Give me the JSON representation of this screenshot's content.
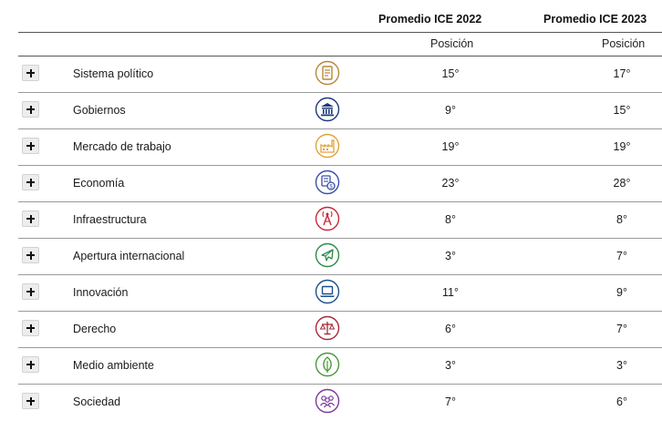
{
  "header": {
    "col_2022": "Promedio ICE 2022",
    "col_2023": "Promedio ICE 2023",
    "sub_2022": "Posición",
    "sub_2023": "Posición"
  },
  "rows": [
    {
      "label": "Sistema político",
      "icon": "document-icon",
      "color": "#b8873a",
      "v2022": "15°",
      "v2023": "17°"
    },
    {
      "label": "Gobiernos",
      "icon": "government-building-icon",
      "color": "#1f3a7a",
      "v2022": "9°",
      "v2023": "15°"
    },
    {
      "label": "Mercado de trabajo",
      "icon": "factory-icon",
      "color": "#e0a33a",
      "v2022": "19°",
      "v2023": "19°"
    },
    {
      "label": "Economía",
      "icon": "money-icon",
      "color": "#3a4fa8",
      "v2022": "23°",
      "v2023": "28°"
    },
    {
      "label": "Infraestructura",
      "icon": "antenna-tower-icon",
      "color": "#c8283a",
      "v2022": "8°",
      "v2023": "8°"
    },
    {
      "label": "Apertura internacional",
      "icon": "airplane-icon",
      "color": "#2e8a4a",
      "v2022": "3°",
      "v2023": "7°"
    },
    {
      "label": "Innovación",
      "icon": "laptop-icon",
      "color": "#1f4f8a",
      "v2022": "11°",
      "v2023": "9°"
    },
    {
      "label": "Derecho",
      "icon": "scales-icon",
      "color": "#a8283a",
      "v2022": "6°",
      "v2023": "7°"
    },
    {
      "label": "Medio ambiente",
      "icon": "leaf-icon",
      "color": "#4a9a3a",
      "v2022": "3°",
      "v2023": "3°"
    },
    {
      "label": "Sociedad",
      "icon": "people-icon",
      "color": "#7a3a9a",
      "v2022": "7°",
      "v2023": "6°"
    }
  ]
}
